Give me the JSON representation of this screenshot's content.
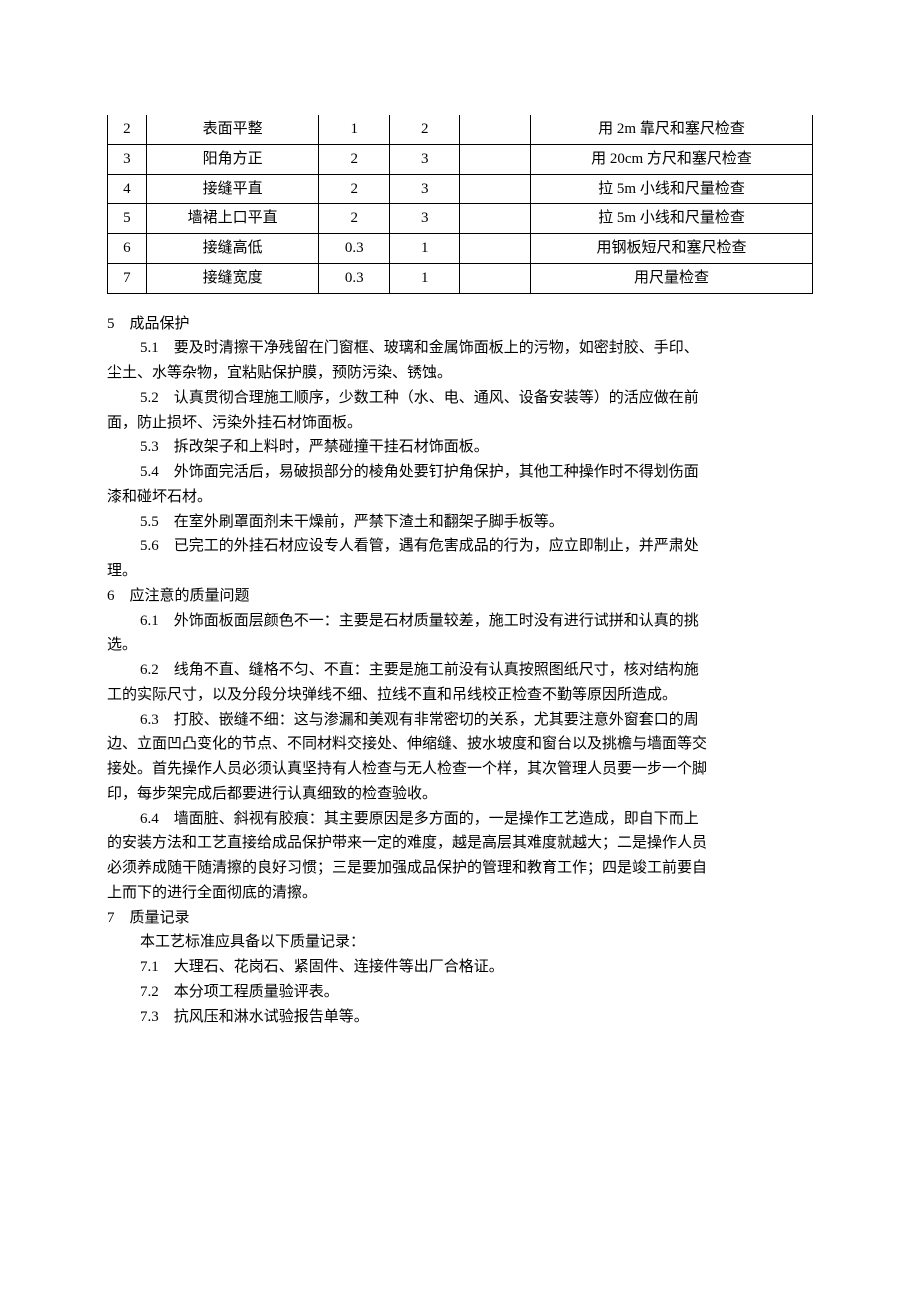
{
  "table": {
    "rows": [
      {
        "n": "2",
        "item": "表面平整",
        "c1": "1",
        "c2": "2",
        "c3": "",
        "method": "用 2m 靠尺和塞尺检查"
      },
      {
        "n": "3",
        "item": "阳角方正",
        "c1": "2",
        "c2": "3",
        "c3": "",
        "method": "用 20cm 方尺和塞尺检查"
      },
      {
        "n": "4",
        "item": "接缝平直",
        "c1": "2",
        "c2": "3",
        "c3": "",
        "method": "拉 5m 小线和尺量检查"
      },
      {
        "n": "5",
        "item": "墙裙上口平直",
        "c1": "2",
        "c2": "3",
        "c3": "",
        "method": "拉 5m 小线和尺量检查"
      },
      {
        "n": "6",
        "item": "接缝高低",
        "c1": "0.3",
        "c2": "1",
        "c3": "",
        "method": "用钢板短尺和塞尺检查"
      },
      {
        "n": "7",
        "item": "接缝宽度",
        "c1": "0.3",
        "c2": "1",
        "c3": "",
        "method": "用尺量检查"
      }
    ]
  },
  "sections": {
    "s5": {
      "head": "5 成品保护",
      "p1a": "5.1 要及时清擦干净残留在门窗框、玻璃和金属饰面板上的污物，如密封胶、手印、",
      "p1b": "尘土、水等杂物，宜粘贴保护膜，预防污染、锈蚀。",
      "p2a": "5.2 认真贯彻合理施工顺序，少数工种（水、电、通风、设备安装等）的活应做在前",
      "p2b": "面，防止损坏、污染外挂石材饰面板。",
      "p3": "5.3 拆改架子和上料时，严禁碰撞干挂石材饰面板。",
      "p4a": "5.4 外饰面完活后，易破损部分的棱角处要钉护角保护，其他工种操作时不得划伤面",
      "p4b": "漆和碰坏石材。",
      "p5": "5.5 在室外刷罩面剂未干燥前，严禁下渣土和翻架子脚手板等。",
      "p6a": "5.6 已完工的外挂石材应设专人看管，遇有危害成品的行为，应立即制止，并严肃处",
      "p6b": "理。"
    },
    "s6": {
      "head": "6 应注意的质量问题",
      "p1a": "6.1 外饰面板面层颜色不一：主要是石材质量较差，施工时没有进行试拼和认真的挑",
      "p1b": "选。",
      "p2a": "6.2 线角不直、缝格不匀、不直：主要是施工前没有认真按照图纸尺寸，核对结构施",
      "p2b": "工的实际尺寸，以及分段分块弹线不细、拉线不直和吊线校正检查不勤等原因所造成。",
      "p3a": "6.3 打胶、嵌缝不细：这与渗漏和美观有非常密切的关系，尤其要注意外窗套口的周",
      "p3b": "边、立面凹凸变化的节点、不同材料交接处、伸缩缝、披水坡度和窗台以及挑檐与墙面等交",
      "p3c": "接处。首先操作人员必须认真坚持有人检查与无人检查一个样，其次管理人员要一步一个脚",
      "p3d": "印，每步架完成后都要进行认真细致的检查验收。",
      "p4a": "6.4 墙面脏、斜视有胶痕：其主要原因是多方面的，一是操作工艺造成，即自下而上",
      "p4b": "的安装方法和工艺直接给成品保护带来一定的难度，越是高层其难度就越大；二是操作人员",
      "p4c": "必须养成随干随清擦的良好习惯；三是要加强成品保护的管理和教育工作；四是竣工前要自",
      "p4d": "上而下的进行全面彻底的清擦。"
    },
    "s7": {
      "head": "7 质量记录",
      "p0": "本工艺标准应具备以下质量记录：",
      "p1": "7.1 大理石、花岗石、紧固件、连接件等出厂合格证。",
      "p2": "7.2 本分项工程质量验评表。",
      "p3": "7.3 抗风压和淋水试验报告单等。"
    }
  }
}
